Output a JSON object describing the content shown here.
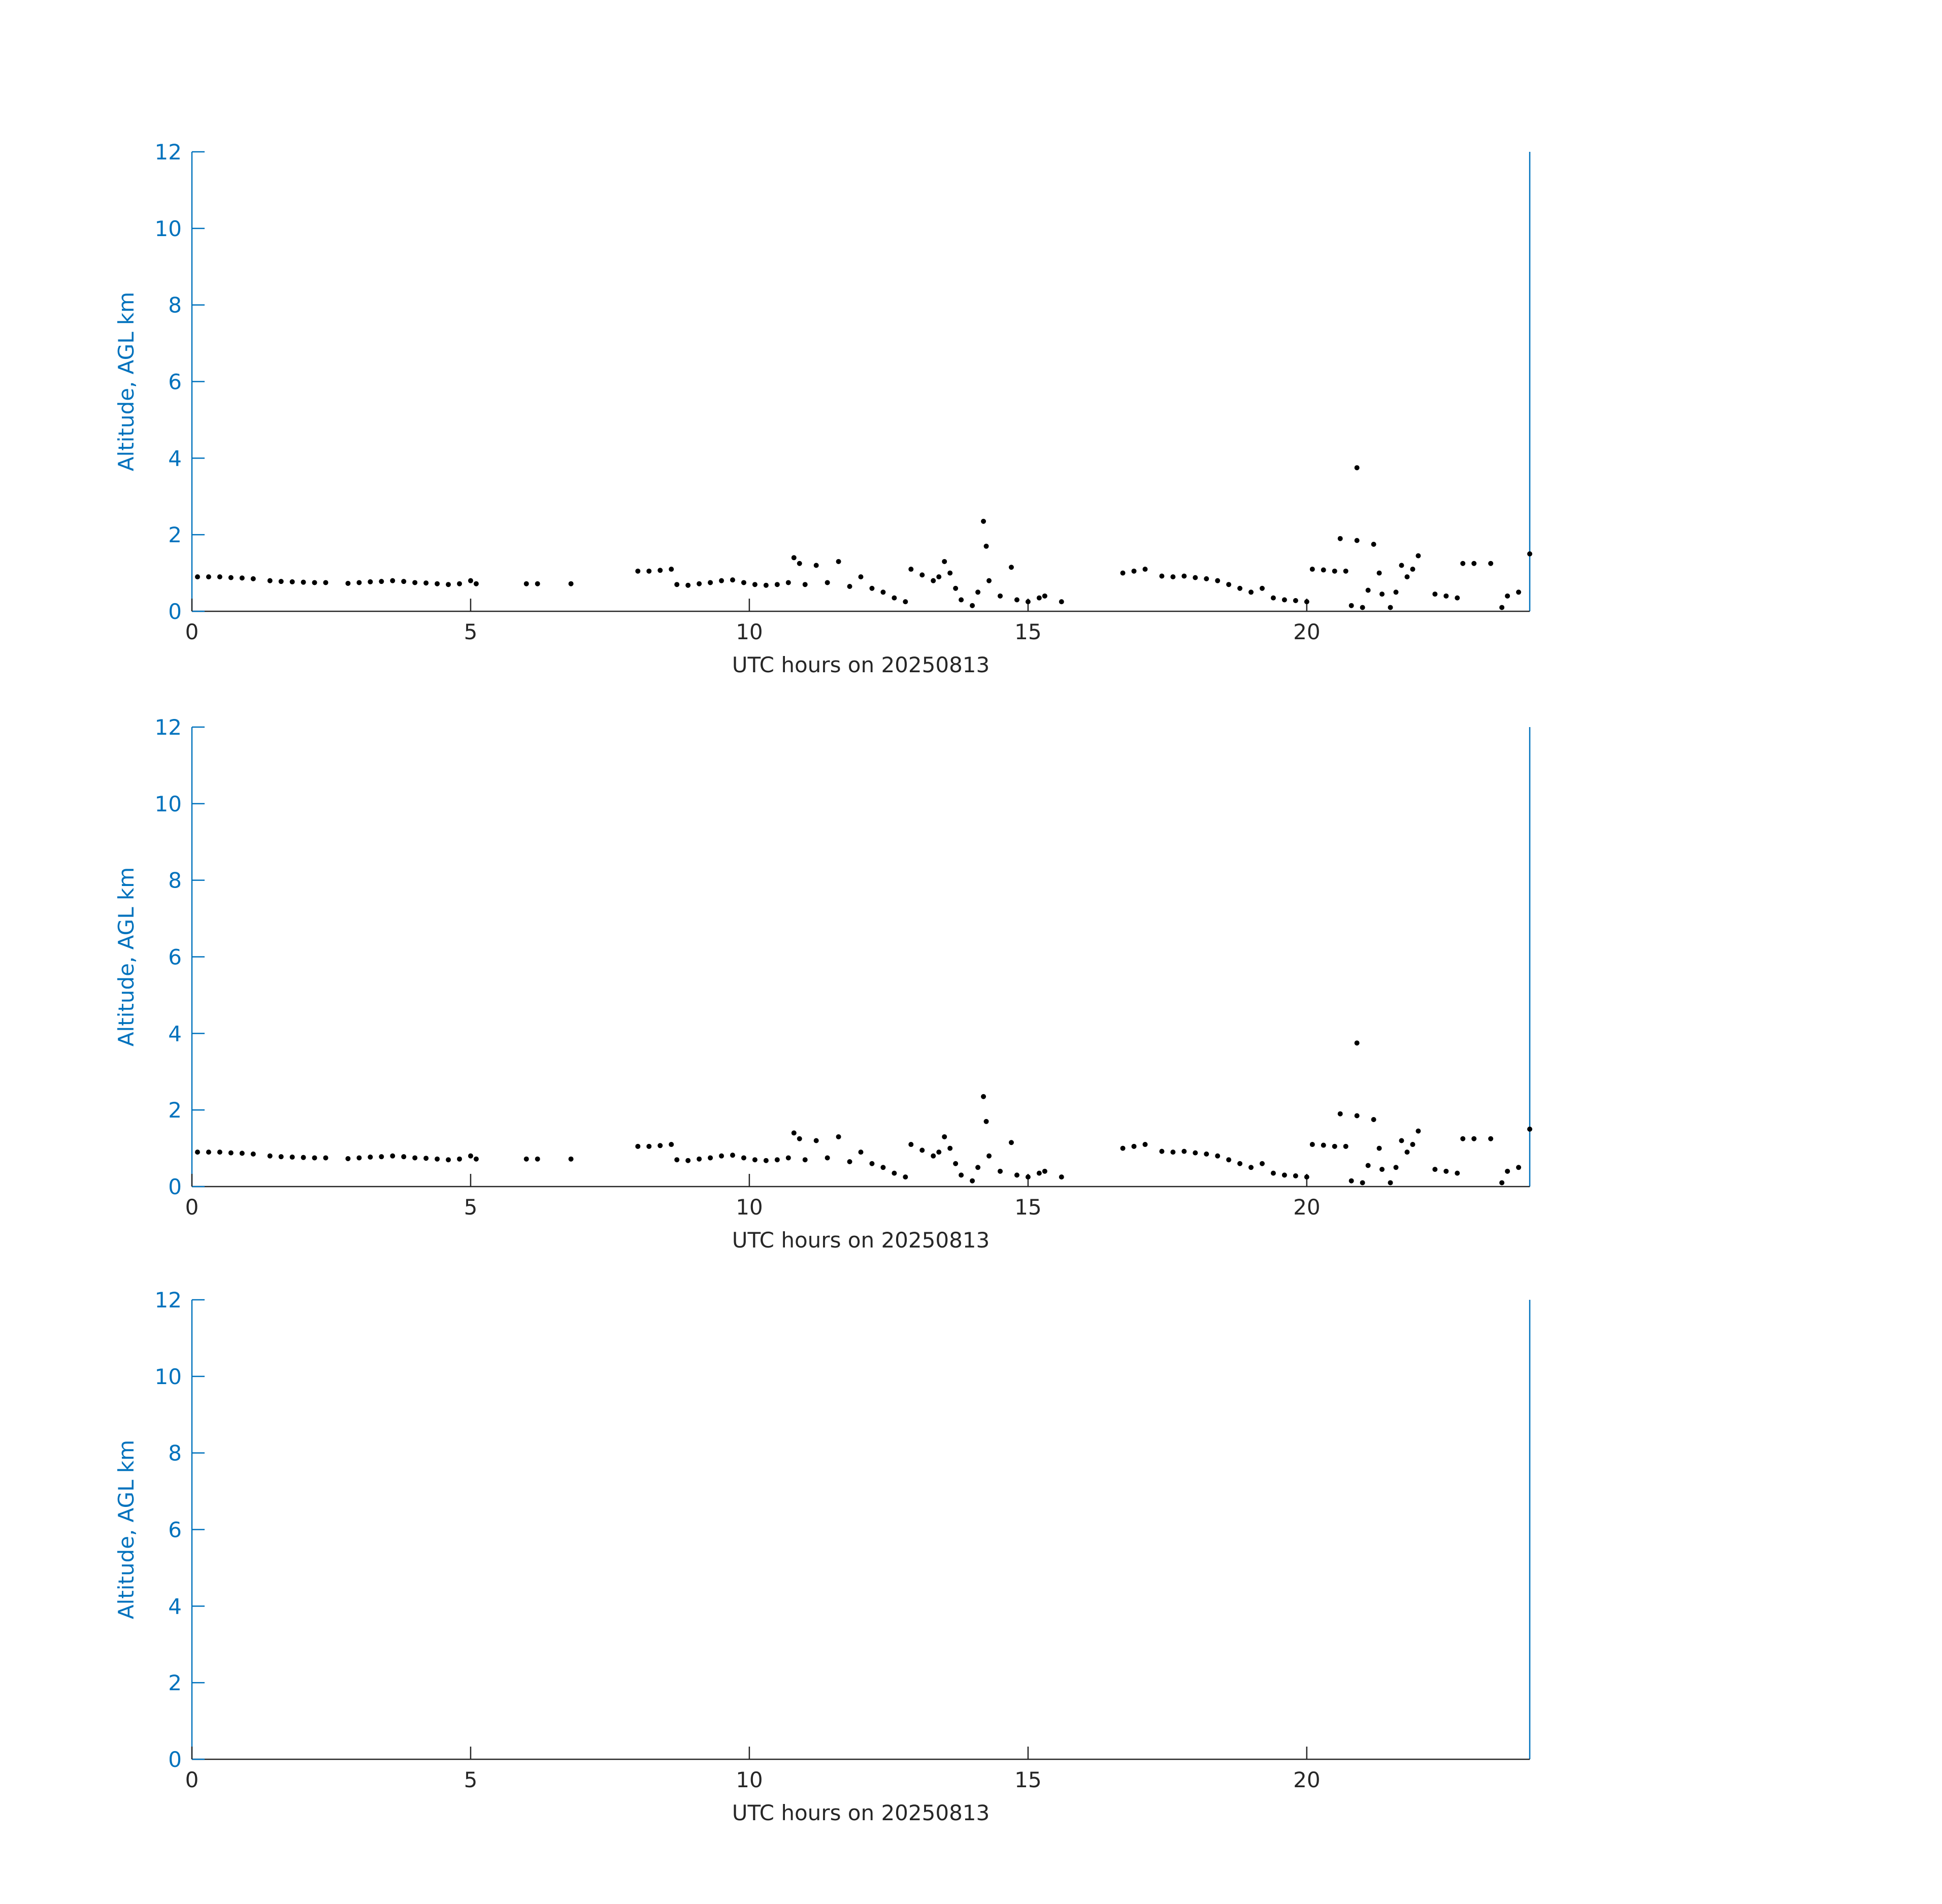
{
  "chart_data": [
    {
      "type": "scatter",
      "xlabel": "UTC hours on 20250813",
      "ylabel": "Altitude, AGL km",
      "color": "#000000",
      "axis_color": "#0072bd",
      "x": [
        0.1,
        0.3,
        0.5,
        0.7,
        0.9,
        1.1,
        1.4,
        1.6,
        1.8,
        2.0,
        2.2,
        2.4,
        2.8,
        3.0,
        3.2,
        3.4,
        3.6,
        3.8,
        4.0,
        4.2,
        4.4,
        4.6,
        4.8,
        5.0,
        5.1,
        6.0,
        6.2,
        6.8,
        8.0,
        8.2,
        8.4,
        8.6,
        8.7,
        8.9,
        9.1,
        9.3,
        9.5,
        9.7,
        9.9,
        10.1,
        10.3,
        10.5,
        10.7,
        10.8,
        10.9,
        11.0,
        11.2,
        11.4,
        11.6,
        11.8,
        12.0,
        12.2,
        12.4,
        12.6,
        12.8,
        12.9,
        13.1,
        13.3,
        13.4,
        13.5,
        13.6,
        13.7,
        13.8,
        14.0,
        14.1,
        14.2,
        14.25,
        14.3,
        14.5,
        14.7,
        14.8,
        15.0,
        15.2,
        15.3,
        15.6,
        16.7,
        16.9,
        17.1,
        17.4,
        17.6,
        17.8,
        18.0,
        18.2,
        18.4,
        18.6,
        18.8,
        19.0,
        19.2,
        19.4,
        19.6,
        19.8,
        20.0,
        20.1,
        20.3,
        20.5,
        20.7,
        20.6,
        20.8,
        20.9,
        21.0,
        21.1,
        21.2,
        21.3,
        21.35,
        21.5,
        21.6,
        21.7,
        21.8,
        21.9,
        22.0,
        22.3,
        22.5,
        22.7,
        22.8,
        23.0,
        23.3,
        23.5,
        23.6,
        23.8,
        24.0,
        20.9
      ],
      "y": [
        0.9,
        0.9,
        0.9,
        0.88,
        0.87,
        0.85,
        0.8,
        0.78,
        0.77,
        0.76,
        0.75,
        0.75,
        0.73,
        0.75,
        0.77,
        0.78,
        0.8,
        0.78,
        0.75,
        0.74,
        0.72,
        0.7,
        0.72,
        0.8,
        0.72,
        0.72,
        0.72,
        0.72,
        1.05,
        1.05,
        1.07,
        1.1,
        0.7,
        0.68,
        0.72,
        0.75,
        0.8,
        0.82,
        0.75,
        0.7,
        0.68,
        0.7,
        0.75,
        1.4,
        1.25,
        0.7,
        1.2,
        0.75,
        1.3,
        0.65,
        0.9,
        0.6,
        0.5,
        0.35,
        0.25,
        1.1,
        0.95,
        0.8,
        0.9,
        1.3,
        1.0,
        0.6,
        0.3,
        0.15,
        0.5,
        2.35,
        1.7,
        0.8,
        0.4,
        1.15,
        0.3,
        0.25,
        0.35,
        0.4,
        0.25,
        1.0,
        1.05,
        1.1,
        0.92,
        0.9,
        0.92,
        0.88,
        0.85,
        0.8,
        0.7,
        0.6,
        0.5,
        0.6,
        0.35,
        0.3,
        0.28,
        0.25,
        1.1,
        1.08,
        1.05,
        1.05,
        1.9,
        0.15,
        1.85,
        0.1,
        0.55,
        1.75,
        1.0,
        0.45,
        0.1,
        0.5,
        1.2,
        0.9,
        1.1,
        1.45,
        0.45,
        0.4,
        0.35,
        1.25,
        1.25,
        1.25,
        0.1,
        0.4,
        0.5,
        1.5,
        3.75
      ],
      "xlim": [
        0,
        24
      ],
      "ylim": [
        0,
        12
      ],
      "xticks": [
        0,
        5,
        10,
        15,
        20
      ],
      "yticks": [
        0,
        2,
        4,
        6,
        8,
        10,
        12
      ]
    },
    {
      "type": "scatter",
      "xlabel": "UTC hours on 20250813",
      "ylabel": "Altitude, AGL km",
      "color": "#000000",
      "axis_color": "#0072bd",
      "x": [
        0.1,
        0.3,
        0.5,
        0.7,
        0.9,
        1.1,
        1.4,
        1.6,
        1.8,
        2.0,
        2.2,
        2.4,
        2.8,
        3.0,
        3.2,
        3.4,
        3.6,
        3.8,
        4.0,
        4.2,
        4.4,
        4.6,
        4.8,
        5.0,
        5.1,
        6.0,
        6.2,
        6.8,
        8.0,
        8.2,
        8.4,
        8.6,
        8.7,
        8.9,
        9.1,
        9.3,
        9.5,
        9.7,
        9.9,
        10.1,
        10.3,
        10.5,
        10.7,
        10.8,
        10.9,
        11.0,
        11.2,
        11.4,
        11.6,
        11.8,
        12.0,
        12.2,
        12.4,
        12.6,
        12.8,
        12.9,
        13.1,
        13.3,
        13.4,
        13.5,
        13.6,
        13.7,
        13.8,
        14.0,
        14.1,
        14.2,
        14.25,
        14.3,
        14.5,
        14.7,
        14.8,
        15.0,
        15.2,
        15.3,
        15.6,
        16.7,
        16.9,
        17.1,
        17.4,
        17.6,
        17.8,
        18.0,
        18.2,
        18.4,
        18.6,
        18.8,
        19.0,
        19.2,
        19.4,
        19.6,
        19.8,
        20.0,
        20.1,
        20.3,
        20.5,
        20.7,
        20.6,
        20.8,
        20.9,
        21.0,
        21.1,
        21.2,
        21.3,
        21.35,
        21.5,
        21.6,
        21.7,
        21.8,
        21.9,
        22.0,
        22.3,
        22.5,
        22.7,
        22.8,
        23.0,
        23.3,
        23.5,
        23.6,
        23.8,
        24.0,
        20.9
      ],
      "y": [
        0.9,
        0.9,
        0.9,
        0.88,
        0.87,
        0.85,
        0.8,
        0.78,
        0.77,
        0.76,
        0.75,
        0.75,
        0.73,
        0.75,
        0.77,
        0.78,
        0.8,
        0.78,
        0.75,
        0.74,
        0.72,
        0.7,
        0.72,
        0.8,
        0.72,
        0.72,
        0.72,
        0.72,
        1.05,
        1.05,
        1.07,
        1.1,
        0.7,
        0.68,
        0.72,
        0.75,
        0.8,
        0.82,
        0.75,
        0.7,
        0.68,
        0.7,
        0.75,
        1.4,
        1.25,
        0.7,
        1.2,
        0.75,
        1.3,
        0.65,
        0.9,
        0.6,
        0.5,
        0.35,
        0.25,
        1.1,
        0.95,
        0.8,
        0.9,
        1.3,
        1.0,
        0.6,
        0.3,
        0.15,
        0.5,
        2.35,
        1.7,
        0.8,
        0.4,
        1.15,
        0.3,
        0.25,
        0.35,
        0.4,
        0.25,
        1.0,
        1.05,
        1.1,
        0.92,
        0.9,
        0.92,
        0.88,
        0.85,
        0.8,
        0.7,
        0.6,
        0.5,
        0.6,
        0.35,
        0.3,
        0.28,
        0.25,
        1.1,
        1.08,
        1.05,
        1.05,
        1.9,
        0.15,
        1.85,
        0.1,
        0.55,
        1.75,
        1.0,
        0.45,
        0.1,
        0.5,
        1.2,
        0.9,
        1.1,
        1.45,
        0.45,
        0.4,
        0.35,
        1.25,
        1.25,
        1.25,
        0.1,
        0.4,
        0.5,
        1.5,
        3.75
      ],
      "xlim": [
        0,
        24
      ],
      "ylim": [
        0,
        12
      ],
      "xticks": [
        0,
        5,
        10,
        15,
        20
      ],
      "yticks": [
        0,
        2,
        4,
        6,
        8,
        10,
        12
      ]
    },
    {
      "type": "scatter",
      "xlabel": "UTC hours on 20250813",
      "ylabel": "Altitude, AGL km",
      "color": "#000000",
      "axis_color": "#0072bd",
      "x": [],
      "y": [],
      "xlim": [
        0,
        24
      ],
      "ylim": [
        0,
        12
      ],
      "xticks": [
        0,
        5,
        10,
        15,
        20
      ],
      "yticks": [
        0,
        2,
        4,
        6,
        8,
        10,
        12
      ]
    }
  ]
}
